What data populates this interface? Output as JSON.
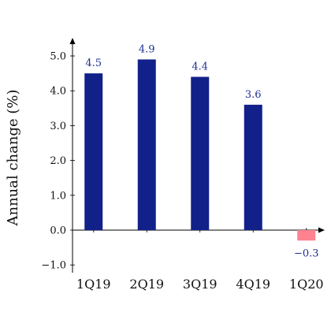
{
  "chart_data": {
    "type": "bar",
    "title": "",
    "xlabel": "",
    "ylabel": "Annual change (%)",
    "categories": [
      "1Q19",
      "2Q19",
      "3Q19",
      "4Q19",
      "1Q20"
    ],
    "values": [
      4.5,
      4.9,
      4.4,
      3.6,
      -0.3
    ],
    "value_labels": [
      "4.5",
      "4.9",
      "4.4",
      "3.6",
      "−0.3"
    ],
    "yticks": [
      -1.0,
      0.0,
      1.0,
      2.0,
      3.0,
      4.0,
      5.0
    ],
    "ytick_labels": [
      "−1.0",
      "0.0",
      "1.0",
      "2.0",
      "3.0",
      "4.0",
      "5.0"
    ],
    "ylim": [
      -1.2,
      5.5
    ],
    "grid": false,
    "colors": {
      "positive": "#12208a",
      "negative": "#ff8290",
      "label": "#1f2f8f",
      "axis": "#000000"
    }
  }
}
